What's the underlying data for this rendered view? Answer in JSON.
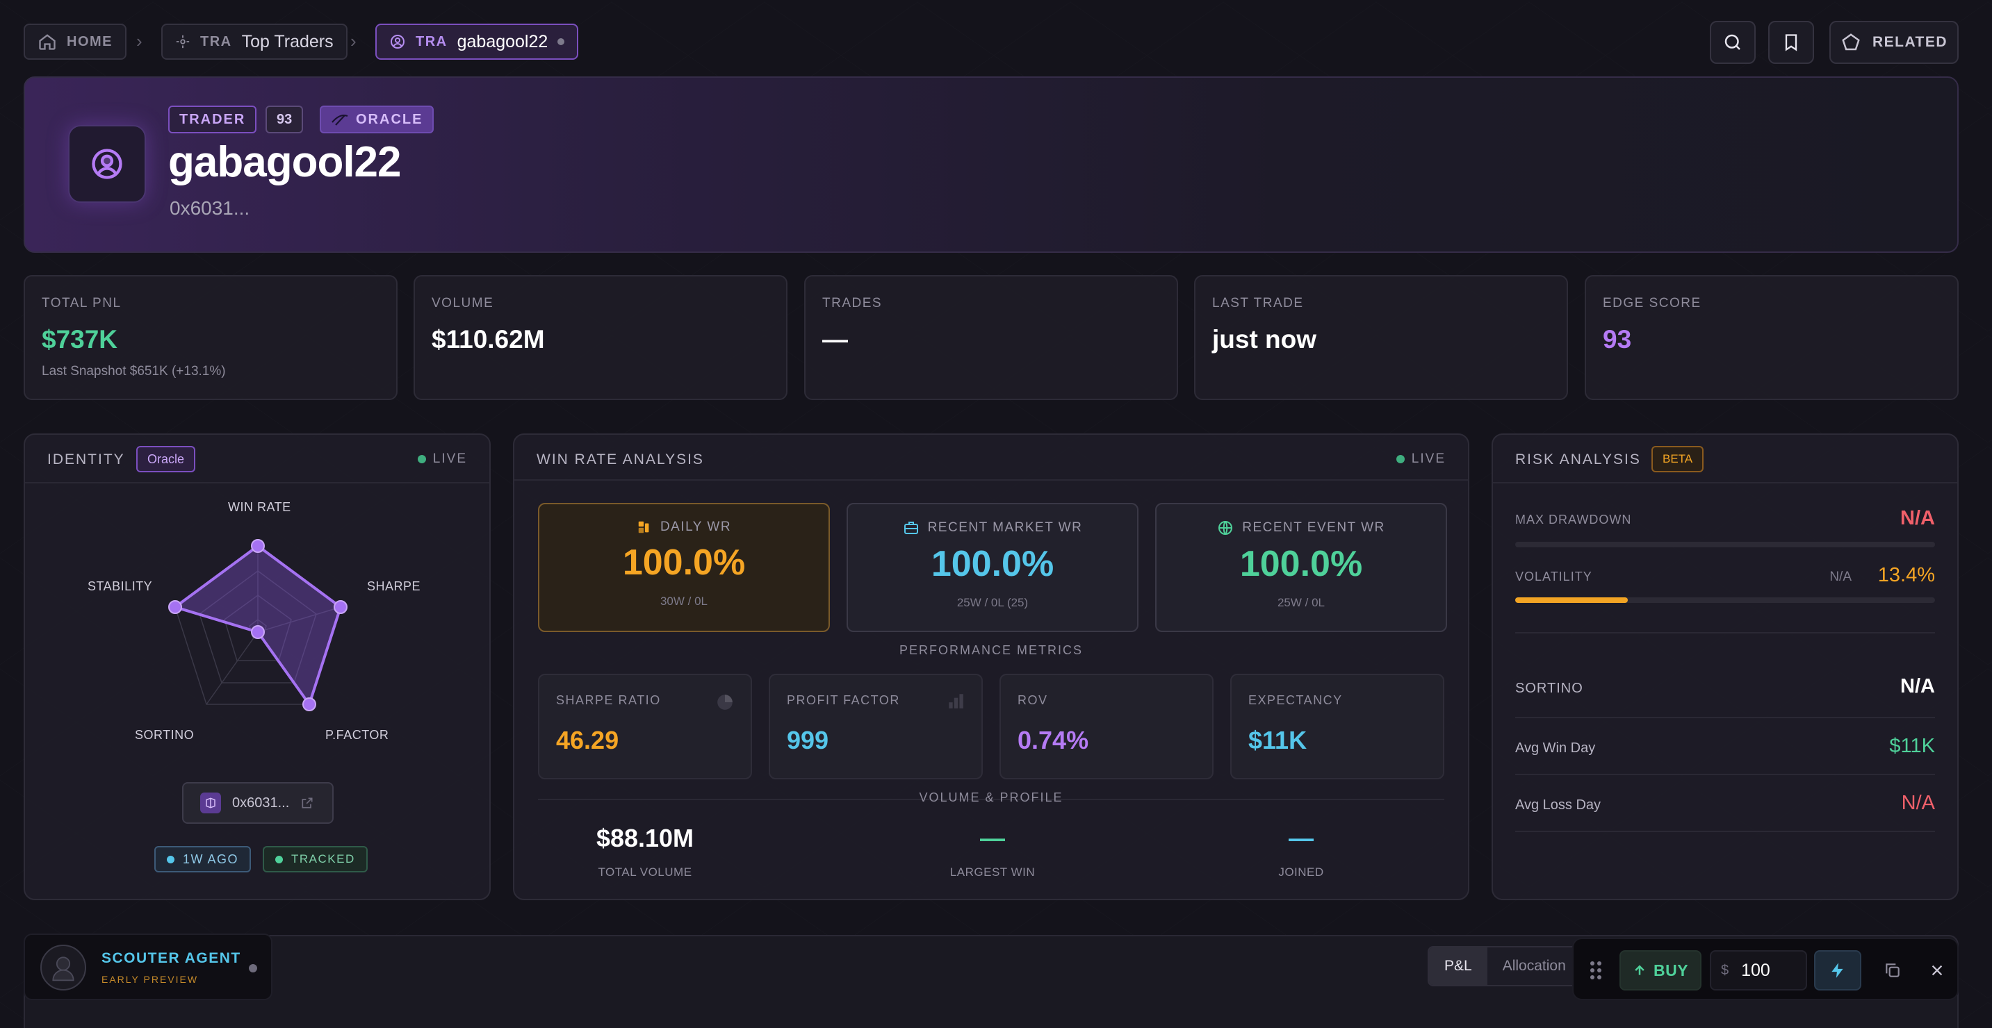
{
  "breadcrumb": {
    "home": "HOME",
    "item1_kind": "TRA",
    "item1_label": "Top Traders",
    "item2_kind": "TRA",
    "item2_label": "gabagool22"
  },
  "header": {
    "related_label": "RELATED"
  },
  "hero": {
    "tags": {
      "role": "TRADER",
      "score": "93",
      "badge": "ORACLE"
    },
    "name": "gabagool22",
    "address": "0x6031..."
  },
  "stats": [
    {
      "label": "TOTAL PNL",
      "value": "$737K",
      "sub": "Last Snapshot $651K (+13.1%)",
      "color": "#4fd19a"
    },
    {
      "label": "VOLUME",
      "value": "$110.62M",
      "sub": "",
      "color": "#ffffff"
    },
    {
      "label": "TRADES",
      "value": "—",
      "sub": "",
      "color": "#ffffff"
    },
    {
      "label": "LAST TRADE",
      "value": "just now",
      "sub": "",
      "color": "#ffffff"
    },
    {
      "label": "EDGE SCORE",
      "value": "93",
      "sub": "",
      "color": "#b57bf5"
    }
  ],
  "identity": {
    "title": "IDENTITY",
    "chip": "Oracle",
    "live": "LIVE",
    "radar": {
      "axes": [
        "WIN RATE",
        "SHARPE",
        "P.FACTOR",
        "SORTINO",
        "STABILITY"
      ]
    },
    "address": "0x6031...",
    "time_chip": "1W AGO",
    "tracked_chip": "TRACKED"
  },
  "winrate": {
    "title": "WIN RATE ANALYSIS",
    "live": "LIVE",
    "cards": [
      {
        "label": "DAILY WR",
        "value": "100.0%",
        "sub": "30W / 0L",
        "color": "#f5a524"
      },
      {
        "label": "RECENT MARKET WR",
        "value": "100.0%",
        "sub": "25W / 0L (25)",
        "color": "#55c6ea"
      },
      {
        "label": "RECENT EVENT WR",
        "value": "100.0%",
        "sub": "25W / 0L",
        "color": "#4fd19a"
      }
    ],
    "performance_label": "PERFORMANCE METRICS",
    "metrics": [
      {
        "label": "SHARPE RATIO",
        "value": "46.29",
        "color": "#f5a524"
      },
      {
        "label": "PROFIT FACTOR",
        "value": "999",
        "color": "#55c6ea"
      },
      {
        "label": "ROV",
        "value": "0.74%",
        "color": "#b57bf5"
      },
      {
        "label": "EXPECTANCY",
        "value": "$11K",
        "color": "#55c6ea"
      }
    ],
    "volume_label": "VOLUME & PROFILE",
    "profile": [
      {
        "label": "TOTAL VOLUME",
        "value": "$88.10M"
      },
      {
        "label": "LARGEST WIN",
        "value": "—"
      },
      {
        "label": "JOINED",
        "value": "—"
      }
    ]
  },
  "risk": {
    "title": "RISK ANALYSIS",
    "chip": "BETA",
    "max_drawdown_label": "MAX DRAWDOWN",
    "max_drawdown_value": "N/A",
    "volatility_label": "VOLATILITY",
    "volatility_na": "N/A",
    "volatility_value": "13.4%",
    "volatility_level": 0.268,
    "sortino_label": "SORTINO",
    "sortino_value": "N/A",
    "avg_win_label": "Avg Win Day",
    "avg_win_value": "$11K",
    "avg_loss_label": "Avg Loss Day",
    "avg_loss_value": "N/A"
  },
  "agent": {
    "title": "SCOUTER AGENT",
    "subtitle": "EARLY PREVIEW"
  },
  "chart_tabs": [
    "P&L",
    "Allocation"
  ],
  "trade": {
    "buy_label": "BUY",
    "currency": "$",
    "amount": "100"
  },
  "colors": {
    "accent": "#9b5cf0",
    "green": "#4fd19a",
    "orange": "#f5a524",
    "cyan": "#55c6ea",
    "red": "#f0606a"
  }
}
